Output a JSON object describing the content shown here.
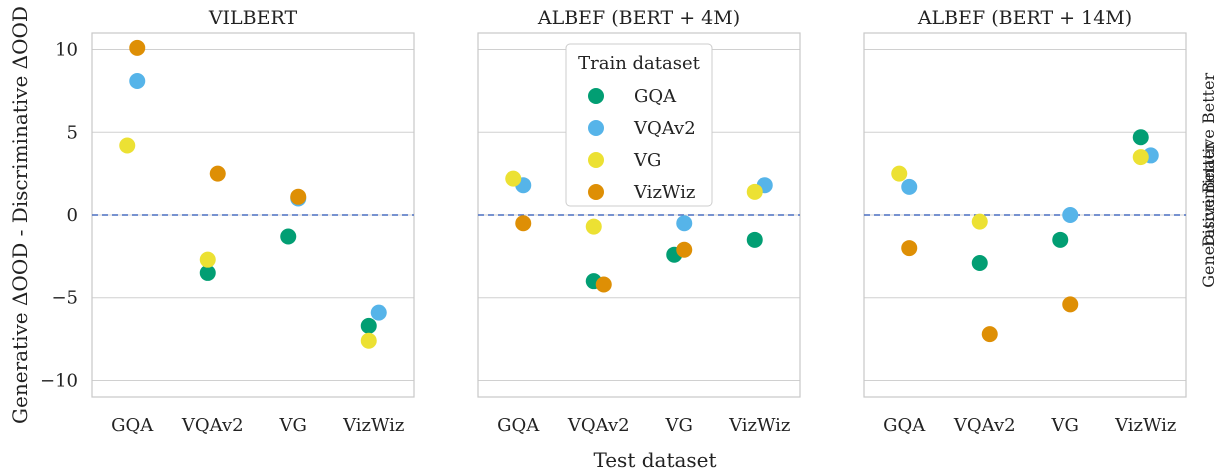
{
  "colors": {
    "GQA": "#029e73",
    "VQAv2": "#56b4e9",
    "VG": "#ece133",
    "VizWiz": "#de8f05",
    "zero_line": "#4a6fc0",
    "grid": "#d0d0d0",
    "frame": "#c8c8c8"
  },
  "chart_data": {
    "type": "scatter",
    "xlabel": "Test dataset",
    "ylabel": "Generative ΔOOD  - Discriminative ΔOOD",
    "right_label": "Generative Better",
    "right_label_overlap": "Discriminative Better",
    "categories": [
      "GQA",
      "VQAv2",
      "VG",
      "VizWiz"
    ],
    "ylim": [
      -11,
      11
    ],
    "yticks": [
      10,
      5,
      0,
      -5,
      -10
    ],
    "ytick_labels": [
      "10",
      "5",
      "0",
      "−5",
      "−10"
    ],
    "grid": true,
    "reference_line": 0,
    "legend": {
      "title": "Train dataset",
      "placement": "top-center of middle panel",
      "entries": [
        "GQA",
        "VQAv2",
        "VG",
        "VizWiz"
      ]
    },
    "panels": [
      {
        "title": "VILBERT",
        "series": [
          {
            "name": "GQA",
            "values": [
              null,
              -3.5,
              -1.3,
              -6.7
            ]
          },
          {
            "name": "VQAv2",
            "values": [
              8.1,
              null,
              1.0,
              -5.9
            ]
          },
          {
            "name": "VG",
            "values": [
              4.2,
              -2.7,
              null,
              -7.6
            ]
          },
          {
            "name": "VizWiz",
            "values": [
              10.1,
              2.5,
              1.1,
              null
            ]
          }
        ]
      },
      {
        "title": "ALBEF (BERT + 4M)",
        "series": [
          {
            "name": "GQA",
            "values": [
              null,
              -4.0,
              -2.4,
              -1.5
            ]
          },
          {
            "name": "VQAv2",
            "values": [
              1.8,
              null,
              -0.5,
              1.8
            ]
          },
          {
            "name": "VG",
            "values": [
              2.2,
              -0.7,
              null,
              1.4
            ]
          },
          {
            "name": "VizWiz",
            "values": [
              -0.5,
              -4.2,
              -2.1,
              null
            ]
          }
        ]
      },
      {
        "title": "ALBEF (BERT + 14M)",
        "series": [
          {
            "name": "GQA",
            "values": [
              null,
              -2.9,
              -1.5,
              4.7
            ]
          },
          {
            "name": "VQAv2",
            "values": [
              1.7,
              null,
              0.0,
              3.6
            ]
          },
          {
            "name": "VG",
            "values": [
              2.5,
              -0.4,
              null,
              3.5
            ]
          },
          {
            "name": "VizWiz",
            "values": [
              -2.0,
              -7.2,
              -5.4,
              null
            ]
          }
        ]
      }
    ]
  }
}
